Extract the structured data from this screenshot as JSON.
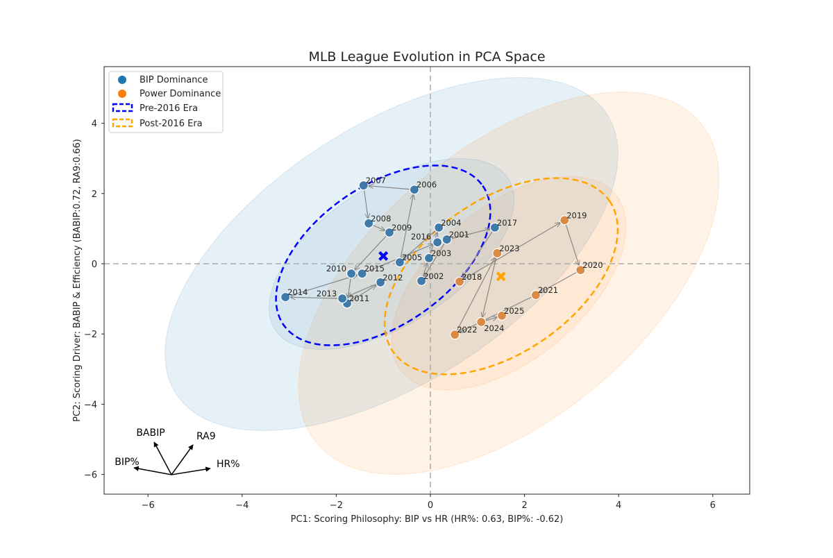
{
  "chart_data": {
    "type": "scatter",
    "title": "MLB League Evolution in PCA Space",
    "xlabel": "PC1: Scoring Philosophy: BIP vs HR (HR%: 0.63, BIP%: -0.62)",
    "ylabel": "PC2: Scoring Driver: BABIP & Efficiency (BABIP:0.72, RA9:0.66)",
    "xlim": [
      -6.9,
      6.8
    ],
    "ylim": [
      -6.6,
      5.6
    ],
    "xticks": [
      -6,
      -4,
      -2,
      0,
      2,
      4,
      6
    ],
    "yticks": [
      -6,
      -4,
      -2,
      0,
      2,
      4
    ],
    "grid": false,
    "legend_position": "top-left",
    "legend": [
      {
        "label": "BIP Dominance",
        "kind": "marker",
        "color": "#1f77b4"
      },
      {
        "label": "Power Dominance",
        "kind": "marker",
        "color": "#ff7f0e"
      },
      {
        "label": "Pre-2016 Era",
        "kind": "dashed-box",
        "color": "#0000ff"
      },
      {
        "label": "Post-2016 Era",
        "kind": "dashed-box",
        "color": "#ffa500"
      }
    ],
    "colors": {
      "bip": "#3f7aa8",
      "power": "#d98a45",
      "pre_era": "#0000ff",
      "post_era": "#ffa500"
    },
    "points": [
      {
        "year": "2001",
        "pc1": 0.35,
        "pc2": 0.69,
        "group": "bip"
      },
      {
        "year": "2002",
        "pc1": -0.19,
        "pc2": -0.49,
        "group": "bip"
      },
      {
        "year": "2003",
        "pc1": -0.03,
        "pc2": 0.16,
        "group": "bip"
      },
      {
        "year": "2004",
        "pc1": 0.18,
        "pc2": 1.03,
        "group": "bip"
      },
      {
        "year": "2005",
        "pc1": -0.65,
        "pc2": 0.04,
        "group": "bip"
      },
      {
        "year": "2006",
        "pc1": -0.34,
        "pc2": 2.11,
        "group": "bip"
      },
      {
        "year": "2007",
        "pc1": -1.42,
        "pc2": 2.23,
        "group": "bip"
      },
      {
        "year": "2008",
        "pc1": -1.31,
        "pc2": 1.15,
        "group": "bip"
      },
      {
        "year": "2009",
        "pc1": -0.87,
        "pc2": 0.89,
        "group": "bip"
      },
      {
        "year": "2010",
        "pc1": -1.68,
        "pc2": -0.28,
        "group": "bip"
      },
      {
        "year": "2011",
        "pc1": -1.77,
        "pc2": -1.13,
        "group": "bip"
      },
      {
        "year": "2012",
        "pc1": -1.06,
        "pc2": -0.53,
        "group": "bip"
      },
      {
        "year": "2013",
        "pc1": -1.87,
        "pc2": -0.99,
        "group": "bip"
      },
      {
        "year": "2014",
        "pc1": -3.08,
        "pc2": -0.95,
        "group": "bip"
      },
      {
        "year": "2015",
        "pc1": -1.45,
        "pc2": -0.28,
        "group": "bip"
      },
      {
        "year": "2016",
        "pc1": 0.15,
        "pc2": 0.61,
        "group": "bip"
      },
      {
        "year": "2017",
        "pc1": 1.37,
        "pc2": 1.03,
        "group": "bip"
      },
      {
        "year": "2018",
        "pc1": 0.62,
        "pc2": -0.51,
        "group": "power"
      },
      {
        "year": "2019",
        "pc1": 2.85,
        "pc2": 1.24,
        "group": "power"
      },
      {
        "year": "2020",
        "pc1": 3.19,
        "pc2": -0.18,
        "group": "power"
      },
      {
        "year": "2021",
        "pc1": 2.24,
        "pc2": -0.89,
        "group": "power"
      },
      {
        "year": "2022",
        "pc1": 0.52,
        "pc2": -2.02,
        "group": "power"
      },
      {
        "year": "2023",
        "pc1": 1.42,
        "pc2": 0.3,
        "group": "power"
      },
      {
        "year": "2024",
        "pc1": 1.08,
        "pc2": -1.66,
        "group": "power"
      },
      {
        "year": "2025",
        "pc1": 1.52,
        "pc2": -1.48,
        "group": "power"
      }
    ],
    "centroids": [
      {
        "era": "Pre-2016 Era",
        "pc1": -1.0,
        "pc2": 0.22,
        "color": "#0000ff"
      },
      {
        "era": "Post-2016 Era",
        "pc1": 1.5,
        "pc2": -0.36,
        "color": "#ffa500"
      }
    ],
    "loadings": [
      {
        "label": "BABIP"
      },
      {
        "label": "RA9"
      },
      {
        "label": "BIP%"
      },
      {
        "label": "HR%"
      }
    ]
  }
}
